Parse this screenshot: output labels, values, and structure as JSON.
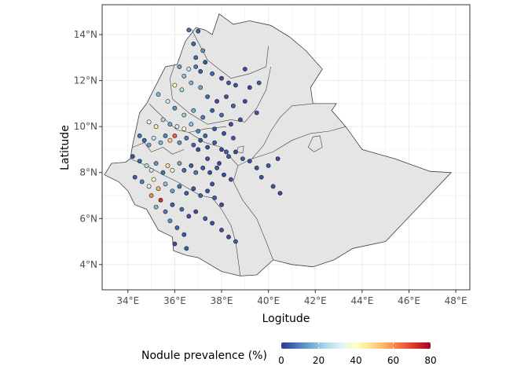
{
  "chart_data": {
    "type": "scatter",
    "title": "",
    "xlabel": "Logitude",
    "ylabel": "Latitude",
    "xlim": [
      32.9,
      48.6
    ],
    "ylim": [
      2.9,
      15.3
    ],
    "x_ticks": [
      {
        "value": 34,
        "label": "34°E"
      },
      {
        "value": 36,
        "label": "36°E"
      },
      {
        "value": 38,
        "label": "38°E"
      },
      {
        "value": 40,
        "label": "40°E"
      },
      {
        "value": 42,
        "label": "42°E"
      },
      {
        "value": 44,
        "label": "44°E"
      },
      {
        "value": 46,
        "label": "46°E"
      },
      {
        "value": 48,
        "label": "48°E"
      }
    ],
    "y_ticks": [
      {
        "value": 4,
        "label": "4°N"
      },
      {
        "value": 6,
        "label": "6°N"
      },
      {
        "value": 8,
        "label": "8°N"
      },
      {
        "value": 10,
        "label": "10°N"
      },
      {
        "value": 12,
        "label": "12°N"
      },
      {
        "value": 14,
        "label": "14°N"
      }
    ],
    "grid": true,
    "legend": {
      "title": "Nodule prevalence (%)",
      "placement": "bottom",
      "min": 0,
      "max": 80,
      "ticks": [
        {
          "value": 0,
          "label": "0"
        },
        {
          "value": 20,
          "label": "20"
        },
        {
          "value": 40,
          "label": "40"
        },
        {
          "value": 60,
          "label": "60"
        },
        {
          "value": 80,
          "label": "80"
        }
      ],
      "colors": [
        "#313695",
        "#4575b4",
        "#74add1",
        "#abd9e9",
        "#e0f3f8",
        "#ffffbf",
        "#fee090",
        "#fdae61",
        "#f46d43",
        "#d73027",
        "#a50026"
      ]
    },
    "colors": {
      "land_fill": "#e5e5e5",
      "border": "#404040",
      "panel_border": "#333333",
      "grid": "#ebebeb"
    },
    "country_outline": [
      [
        33.0,
        7.9
      ],
      [
        33.3,
        8.4
      ],
      [
        33.9,
        8.45
      ],
      [
        34.1,
        8.6
      ],
      [
        34.2,
        9.2
      ],
      [
        34.5,
        10.6
      ],
      [
        34.8,
        11.0
      ],
      [
        35.4,
        12.2
      ],
      [
        35.6,
        12.6
      ],
      [
        36.1,
        12.7
      ],
      [
        36.45,
        13.7
      ],
      [
        36.9,
        14.3
      ],
      [
        37.3,
        14.2
      ],
      [
        37.6,
        14.0
      ],
      [
        37.9,
        14.9
      ],
      [
        38.5,
        14.45
      ],
      [
        39.2,
        14.6
      ],
      [
        40.1,
        14.4
      ],
      [
        40.9,
        13.9
      ],
      [
        41.6,
        13.3
      ],
      [
        42.3,
        12.5
      ],
      [
        41.8,
        11.7
      ],
      [
        41.9,
        11.0
      ],
      [
        42.9,
        11.0
      ],
      [
        42.7,
        10.7
      ],
      [
        43.3,
        10.0
      ],
      [
        44.0,
        9.0
      ],
      [
        45.4,
        8.6
      ],
      [
        46.9,
        8.05
      ],
      [
        47.8,
        8.0
      ],
      [
        45.0,
        5.0
      ],
      [
        43.6,
        4.7
      ],
      [
        42.8,
        4.2
      ],
      [
        41.9,
        3.9
      ],
      [
        41.0,
        4.0
      ],
      [
        40.2,
        4.2
      ],
      [
        39.5,
        3.55
      ],
      [
        38.8,
        3.5
      ],
      [
        38.0,
        3.7
      ],
      [
        37.0,
        4.3
      ],
      [
        36.5,
        4.4
      ],
      [
        35.95,
        4.6
      ],
      [
        35.9,
        5.2
      ],
      [
        35.3,
        5.5
      ],
      [
        34.8,
        6.4
      ],
      [
        34.3,
        6.6
      ],
      [
        34.0,
        7.2
      ],
      [
        33.6,
        7.6
      ],
      [
        33.0,
        7.9
      ]
    ],
    "region_borders": [
      [
        [
          36.7,
          14.25
        ],
        [
          37.4,
          12.9
        ],
        [
          37.95,
          12.45
        ],
        [
          38.4,
          12.1
        ],
        [
          39.2,
          12.3
        ],
        [
          39.9,
          12.6
        ],
        [
          40.0,
          13.5
        ]
      ],
      [
        [
          36.0,
          12.7
        ],
        [
          35.8,
          12.1
        ],
        [
          35.9,
          11.2
        ],
        [
          36.6,
          10.6
        ],
        [
          37.4,
          10.1
        ],
        [
          38.4,
          10.3
        ],
        [
          39.0,
          10.2
        ],
        [
          39.5,
          10.8
        ],
        [
          39.9,
          11.6
        ],
        [
          40.1,
          12.6
        ]
      ],
      [
        [
          34.9,
          11.0
        ],
        [
          35.3,
          10.6
        ],
        [
          35.7,
          10.2
        ],
        [
          36.1,
          9.85
        ],
        [
          36.6,
          9.75
        ],
        [
          37.3,
          9.9
        ],
        [
          38.2,
          10.0
        ]
      ],
      [
        [
          34.2,
          9.1
        ],
        [
          34.7,
          9.3
        ],
        [
          35.0,
          8.9
        ],
        [
          35.5,
          9.1
        ],
        [
          35.9,
          8.8
        ],
        [
          36.4,
          9.0
        ]
      ],
      [
        [
          34.1,
          8.6
        ],
        [
          34.8,
          8.3
        ],
        [
          35.5,
          7.9
        ],
        [
          36.1,
          7.6
        ],
        [
          36.6,
          7.3
        ],
        [
          37.1,
          7.0
        ],
        [
          37.6,
          6.9
        ],
        [
          38.0,
          6.4
        ],
        [
          38.4,
          5.7
        ],
        [
          38.6,
          5.0
        ],
        [
          38.8,
          3.5
        ]
      ],
      [
        [
          40.2,
          4.2
        ],
        [
          39.9,
          5.0
        ],
        [
          39.5,
          6.0
        ],
        [
          38.9,
          6.8
        ],
        [
          38.5,
          7.6
        ],
        [
          38.7,
          8.3
        ],
        [
          39.3,
          8.6
        ],
        [
          40.2,
          8.9
        ],
        [
          41.0,
          9.4
        ],
        [
          41.8,
          9.7
        ],
        [
          42.6,
          9.8
        ],
        [
          43.3,
          10.0
        ]
      ],
      [
        [
          39.3,
          8.6
        ],
        [
          39.8,
          9.2
        ],
        [
          40.1,
          9.8
        ],
        [
          40.5,
          10.4
        ],
        [
          41.0,
          10.9
        ],
        [
          41.9,
          11.0
        ]
      ],
      [
        [
          36.6,
          9.75
        ],
        [
          37.3,
          9.3
        ],
        [
          38.0,
          9.1
        ],
        [
          38.7,
          8.3
        ]
      ],
      [
        [
          41.7,
          9.1
        ],
        [
          41.9,
          9.55
        ],
        [
          42.2,
          9.6
        ],
        [
          42.3,
          9.1
        ],
        [
          41.95,
          8.9
        ],
        [
          41.7,
          9.1
        ]
      ],
      [
        [
          38.7,
          9.1
        ],
        [
          38.95,
          9.15
        ],
        [
          38.9,
          8.85
        ],
        [
          38.65,
          8.9
        ],
        [
          38.7,
          9.1
        ]
      ]
    ],
    "points": [
      [
        36.6,
        14.2,
        8
      ],
      [
        37.0,
        14.15,
        5
      ],
      [
        36.8,
        13.6,
        6
      ],
      [
        37.2,
        13.3,
        12
      ],
      [
        36.9,
        13.0,
        7
      ],
      [
        37.3,
        12.8,
        4
      ],
      [
        36.2,
        12.6,
        14
      ],
      [
        36.6,
        12.5,
        28
      ],
      [
        36.9,
        12.6,
        9
      ],
      [
        37.1,
        12.4,
        5
      ],
      [
        37.6,
        12.3,
        6
      ],
      [
        38.0,
        12.1,
        3
      ],
      [
        38.3,
        11.9,
        5
      ],
      [
        38.6,
        11.8,
        4
      ],
      [
        39.2,
        11.7,
        3
      ],
      [
        39.6,
        11.9,
        5
      ],
      [
        39.0,
        12.5,
        3
      ],
      [
        36.4,
        12.2,
        20
      ],
      [
        36.0,
        11.8,
        40
      ],
      [
        36.3,
        11.6,
        25
      ],
      [
        36.7,
        11.9,
        18
      ],
      [
        37.1,
        11.7,
        15
      ],
      [
        37.4,
        11.3,
        7
      ],
      [
        37.8,
        11.1,
        3
      ],
      [
        38.2,
        11.3,
        4
      ],
      [
        38.5,
        10.9,
        6
      ],
      [
        39.0,
        11.1,
        3
      ],
      [
        39.5,
        10.6,
        4
      ],
      [
        35.3,
        11.4,
        18
      ],
      [
        35.7,
        11.1,
        30
      ],
      [
        36.0,
        10.8,
        12
      ],
      [
        36.4,
        10.5,
        22
      ],
      [
        36.8,
        10.7,
        16
      ],
      [
        37.2,
        10.4,
        9
      ],
      [
        37.6,
        10.7,
        5
      ],
      [
        38.0,
        10.5,
        7
      ],
      [
        38.4,
        10.1,
        3
      ],
      [
        38.8,
        10.3,
        4
      ],
      [
        34.9,
        10.2,
        35
      ],
      [
        35.2,
        10.0,
        45
      ],
      [
        35.5,
        10.3,
        25
      ],
      [
        35.8,
        10.1,
        15
      ],
      [
        36.1,
        10.0,
        30
      ],
      [
        36.4,
        9.9,
        40
      ],
      [
        36.7,
        10.1,
        20
      ],
      [
        37.0,
        9.8,
        10
      ],
      [
        37.3,
        9.6,
        6
      ],
      [
        37.7,
        9.9,
        4
      ],
      [
        38.1,
        9.7,
        3
      ],
      [
        38.5,
        9.5,
        5
      ],
      [
        34.5,
        9.6,
        8
      ],
      [
        34.7,
        9.4,
        6
      ],
      [
        34.9,
        9.2,
        15
      ],
      [
        35.1,
        9.5,
        28
      ],
      [
        35.4,
        9.3,
        18
      ],
      [
        35.6,
        9.6,
        10
      ],
      [
        35.8,
        9.4,
        50
      ],
      [
        36.0,
        9.6,
        65
      ],
      [
        36.2,
        9.3,
        12
      ],
      [
        36.5,
        9.5,
        8
      ],
      [
        36.8,
        9.2,
        6
      ],
      [
        37.1,
        9.4,
        4
      ],
      [
        37.4,
        9.1,
        3
      ],
      [
        37.7,
        9.3,
        5
      ],
      [
        38.0,
        9.0,
        3
      ],
      [
        38.3,
        8.7,
        4
      ],
      [
        38.6,
        8.9,
        3
      ],
      [
        38.9,
        8.6,
        5
      ],
      [
        39.2,
        8.5,
        3
      ],
      [
        39.5,
        8.2,
        4
      ],
      [
        34.2,
        8.7,
        4
      ],
      [
        34.5,
        8.5,
        6
      ],
      [
        34.8,
        8.3,
        25
      ],
      [
        35.0,
        8.1,
        30
      ],
      [
        35.2,
        8.4,
        12
      ],
      [
        35.5,
        8.0,
        8
      ],
      [
        35.7,
        8.3,
        48
      ],
      [
        35.9,
        8.1,
        38
      ],
      [
        36.2,
        8.4,
        15
      ],
      [
        36.4,
        8.1,
        7
      ],
      [
        36.7,
        8.3,
        5
      ],
      [
        36.9,
        8.0,
        9
      ],
      [
        37.2,
        8.2,
        4
      ],
      [
        37.5,
        8.0,
        3
      ],
      [
        37.8,
        8.2,
        5
      ],
      [
        38.1,
        7.9,
        3
      ],
      [
        38.4,
        7.7,
        4
      ],
      [
        34.3,
        7.8,
        5
      ],
      [
        34.6,
        7.6,
        10
      ],
      [
        34.9,
        7.4,
        32
      ],
      [
        35.1,
        7.7,
        40
      ],
      [
        35.3,
        7.3,
        55
      ],
      [
        35.6,
        7.5,
        20
      ],
      [
        35.9,
        7.2,
        14
      ],
      [
        36.2,
        7.4,
        8
      ],
      [
        36.5,
        7.1,
        5
      ],
      [
        36.8,
        7.3,
        4
      ],
      [
        37.1,
        7.0,
        6
      ],
      [
        37.4,
        7.2,
        3
      ],
      [
        37.7,
        6.9,
        5
      ],
      [
        38.0,
        6.6,
        3
      ],
      [
        35.0,
        7.0,
        60
      ],
      [
        35.4,
        6.8,
        72
      ],
      [
        35.2,
        6.5,
        18
      ],
      [
        35.6,
        6.3,
        9
      ],
      [
        35.9,
        6.6,
        5
      ],
      [
        36.3,
        6.4,
        7
      ],
      [
        36.6,
        6.1,
        4
      ],
      [
        36.9,
        6.3,
        3
      ],
      [
        37.3,
        6.0,
        5
      ],
      [
        37.6,
        5.8,
        3
      ],
      [
        38.0,
        5.5,
        4
      ],
      [
        38.3,
        5.2,
        3
      ],
      [
        38.6,
        5.0,
        5
      ],
      [
        35.8,
        5.9,
        12
      ],
      [
        36.1,
        5.6,
        6
      ],
      [
        36.4,
        5.3,
        4
      ],
      [
        36.0,
        4.9,
        3
      ],
      [
        36.5,
        4.7,
        5
      ],
      [
        40.2,
        7.4,
        4
      ],
      [
        40.5,
        7.1,
        3
      ],
      [
        40.0,
        8.3,
        5
      ],
      [
        39.7,
        7.8,
        4
      ],
      [
        40.4,
        8.6,
        3
      ],
      [
        37.0,
        9.0,
        3
      ],
      [
        37.4,
        8.6,
        4
      ],
      [
        37.9,
        8.4,
        3
      ],
      [
        38.2,
        8.9,
        5
      ],
      [
        37.6,
        7.5,
        4
      ]
    ]
  }
}
